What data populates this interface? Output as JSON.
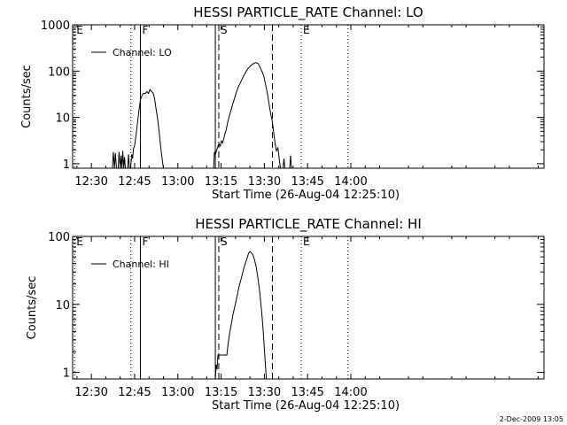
{
  "footer": "2-Dec-2009 13:05",
  "chart_data": [
    {
      "type": "line",
      "title": "HESSI PARTICLE_RATE Channel: LO",
      "xlabel": "Start Time (26-Aug-04 12:25:10)",
      "ylabel": "Counts/sec",
      "scale_y": "log",
      "xlim": [
        23.5,
        187
      ],
      "ylim": [
        0.8,
        1000
      ],
      "grid": false,
      "legend": {
        "placement": "top-left",
        "entries": [
          "Channel: LO"
        ]
      },
      "x_ticks": [
        {
          "x": 30,
          "label": "12:30"
        },
        {
          "x": 45,
          "label": "12:45"
        },
        {
          "x": 60,
          "label": "13:00"
        },
        {
          "x": 75,
          "label": "13:15"
        },
        {
          "x": 90,
          "label": "13:30"
        },
        {
          "x": 105,
          "label": "13:45"
        },
        {
          "x": 120,
          "label": "14:00"
        }
      ],
      "y_ticks": [
        {
          "y": 1,
          "label": "1"
        },
        {
          "y": 10,
          "label": "10"
        },
        {
          "y": 100,
          "label": "100"
        },
        {
          "y": 1000,
          "label": "1000"
        }
      ],
      "markers": [
        {
          "x": 24.2,
          "label": "E",
          "style": "dotted"
        },
        {
          "x": 43.7,
          "label": "",
          "style": "dotted"
        },
        {
          "x": 47.0,
          "label": "F",
          "style": "solid"
        },
        {
          "x": 73.0,
          "label": "",
          "style": "solid"
        },
        {
          "x": 74.2,
          "label": "S",
          "style": "dashed"
        },
        {
          "x": 92.8,
          "label": "",
          "style": "dashed"
        },
        {
          "x": 102.8,
          "label": "E",
          "style": "dotted"
        },
        {
          "x": 119.0,
          "label": "",
          "style": "dotted"
        }
      ],
      "series": [
        {
          "name": "Channel: LO",
          "segments": [
            [
              [
                37.3,
                0.8
              ],
              [
                37.6,
                1.8
              ],
              [
                38.0,
                0.8
              ],
              [
                38.3,
                1.7
              ],
              [
                38.7,
                0.8
              ],
              [
                39.3,
                0.8
              ],
              [
                39.6,
                1.8
              ],
              [
                40.0,
                0.8
              ],
              [
                40.3,
                1.5
              ],
              [
                40.6,
                0.8
              ],
              [
                40.9,
                1.9
              ],
              [
                41.2,
                0.8
              ],
              [
                41.5,
                1.4
              ],
              [
                41.8,
                0.8
              ]
            ],
            [
              [
                42.6,
                0.8
              ],
              [
                42.9,
                1.6
              ],
              [
                43.2,
                0.8
              ]
            ],
            [
              [
                43.6,
                0.8
              ],
              [
                44.0,
                1.6
              ],
              [
                44.3,
                1.3
              ],
              [
                44.6,
                2.1
              ],
              [
                45.0,
                2.5
              ],
              [
                45.4,
                3.8
              ],
              [
                45.8,
                6
              ],
              [
                46.2,
                10
              ],
              [
                46.6,
                16
              ],
              [
                47.0,
                24
              ],
              [
                47.6,
                30
              ],
              [
                48.1,
                33
              ],
              [
                48.7,
                33
              ],
              [
                49.3,
                36
              ],
              [
                49.8,
                33
              ],
              [
                50.3,
                40
              ],
              [
                50.9,
                36
              ],
              [
                51.4,
                34
              ],
              [
                51.9,
                26
              ],
              [
                52.4,
                16
              ],
              [
                52.9,
                10
              ],
              [
                53.5,
                5
              ],
              [
                54.0,
                2.5
              ],
              [
                54.6,
                1.2
              ],
              [
                55.0,
                0.8
              ]
            ],
            [
              [
                72.4,
                0.8
              ],
              [
                72.7,
                1.8
              ],
              [
                73.0,
                1.6
              ],
              [
                73.4,
                1.9
              ],
              [
                73.8,
                2.3
              ],
              [
                74.2,
                2.7
              ],
              [
                74.7,
                2.4
              ],
              [
                75.1,
                3.1
              ],
              [
                75.5,
                2.8
              ],
              [
                75.9,
                3.4
              ],
              [
                76.3,
                4.4
              ],
              [
                76.8,
                5.5
              ],
              [
                77.3,
                8
              ],
              [
                77.8,
                10.5
              ],
              [
                78.4,
                14
              ],
              [
                79.0,
                19
              ],
              [
                79.6,
                25
              ],
              [
                80.3,
                35
              ],
              [
                81.0,
                46
              ],
              [
                81.8,
                58
              ],
              [
                82.6,
                74
              ],
              [
                83.4,
                92
              ],
              [
                84.2,
                110
              ],
              [
                85.0,
                126
              ],
              [
                85.8,
                140
              ],
              [
                86.6,
                150
              ],
              [
                87.2,
                152
              ],
              [
                87.8,
                146
              ],
              [
                88.3,
                130
              ],
              [
                88.8,
                110
              ],
              [
                89.3,
                95
              ],
              [
                89.8,
                78
              ],
              [
                90.4,
                52
              ],
              [
                91.0,
                35
              ],
              [
                91.6,
                20
              ],
              [
                92.2,
                12
              ],
              [
                92.7,
                8.5
              ],
              [
                93.2,
                5
              ],
              [
                93.7,
                2.8
              ],
              [
                94.2,
                1.9
              ],
              [
                94.7,
                2.2
              ],
              [
                95.2,
                1.2
              ],
              [
                95.6,
                0.8
              ]
            ],
            [
              [
                96.5,
                0.8
              ],
              [
                96.8,
                1.3
              ],
              [
                97.1,
                0.8
              ]
            ],
            [
              [
                98.8,
                0.8
              ],
              [
                99.1,
                1.5
              ],
              [
                99.4,
                0.8
              ]
            ]
          ]
        }
      ]
    },
    {
      "type": "line",
      "title": "HESSI PARTICLE_RATE Channel: HI",
      "xlabel": "Start Time (26-Aug-04 12:25:10)",
      "ylabel": "Counts/sec",
      "scale_y": "log",
      "xlim": [
        23.5,
        187
      ],
      "ylim": [
        0.8,
        100
      ],
      "grid": false,
      "legend": {
        "placement": "top-left",
        "entries": [
          "Channel: HI"
        ]
      },
      "x_ticks": [
        {
          "x": 30,
          "label": "12:30"
        },
        {
          "x": 45,
          "label": "12:45"
        },
        {
          "x": 60,
          "label": "13:00"
        },
        {
          "x": 75,
          "label": "13:15"
        },
        {
          "x": 90,
          "label": "13:30"
        },
        {
          "x": 105,
          "label": "13:45"
        },
        {
          "x": 120,
          "label": "14:00"
        }
      ],
      "y_ticks": [
        {
          "y": 1,
          "label": "1"
        },
        {
          "y": 10,
          "label": "10"
        },
        {
          "y": 100,
          "label": "100"
        }
      ],
      "markers": [
        {
          "x": 24.2,
          "label": "E",
          "style": "dotted"
        },
        {
          "x": 43.7,
          "label": "",
          "style": "dotted"
        },
        {
          "x": 47.0,
          "label": "F",
          "style": "solid"
        },
        {
          "x": 73.0,
          "label": "",
          "style": "solid"
        },
        {
          "x": 74.2,
          "label": "S",
          "style": "dashed"
        },
        {
          "x": 92.8,
          "label": "",
          "style": "dashed"
        },
        {
          "x": 102.8,
          "label": "E",
          "style": "dotted"
        },
        {
          "x": 119.0,
          "label": "",
          "style": "dotted"
        }
      ],
      "series": [
        {
          "name": "Channel: HI",
          "segments": [
            [
              [
                73.0,
                0.8
              ],
              [
                73.3,
                1.3
              ],
              [
                73.6,
                1.1
              ],
              [
                73.9,
                1.8
              ],
              [
                74.5,
                1.8
              ],
              [
                75.5,
                1.8
              ],
              [
                76.5,
                1.8
              ],
              [
                77.0,
                1.8
              ],
              [
                77.4,
                2.6
              ],
              [
                77.9,
                3.6
              ],
              [
                78.5,
                5
              ],
              [
                79.1,
                7
              ],
              [
                79.8,
                9.5
              ],
              [
                80.5,
                13
              ],
              [
                81.2,
                18
              ],
              [
                82.0,
                24
              ],
              [
                82.7,
                32
              ],
              [
                83.4,
                40
              ],
              [
                84.0,
                48
              ],
              [
                84.5,
                56
              ],
              [
                85.0,
                60
              ],
              [
                85.5,
                57
              ],
              [
                86.0,
                54
              ],
              [
                86.6,
                45
              ],
              [
                87.2,
                35
              ],
              [
                87.8,
                24
              ],
              [
                88.4,
                15
              ],
              [
                89.0,
                8.5
              ],
              [
                89.5,
                4.6
              ],
              [
                90.0,
                2.2
              ],
              [
                90.4,
                1.2
              ],
              [
                90.7,
                0.8
              ]
            ]
          ]
        }
      ]
    }
  ]
}
